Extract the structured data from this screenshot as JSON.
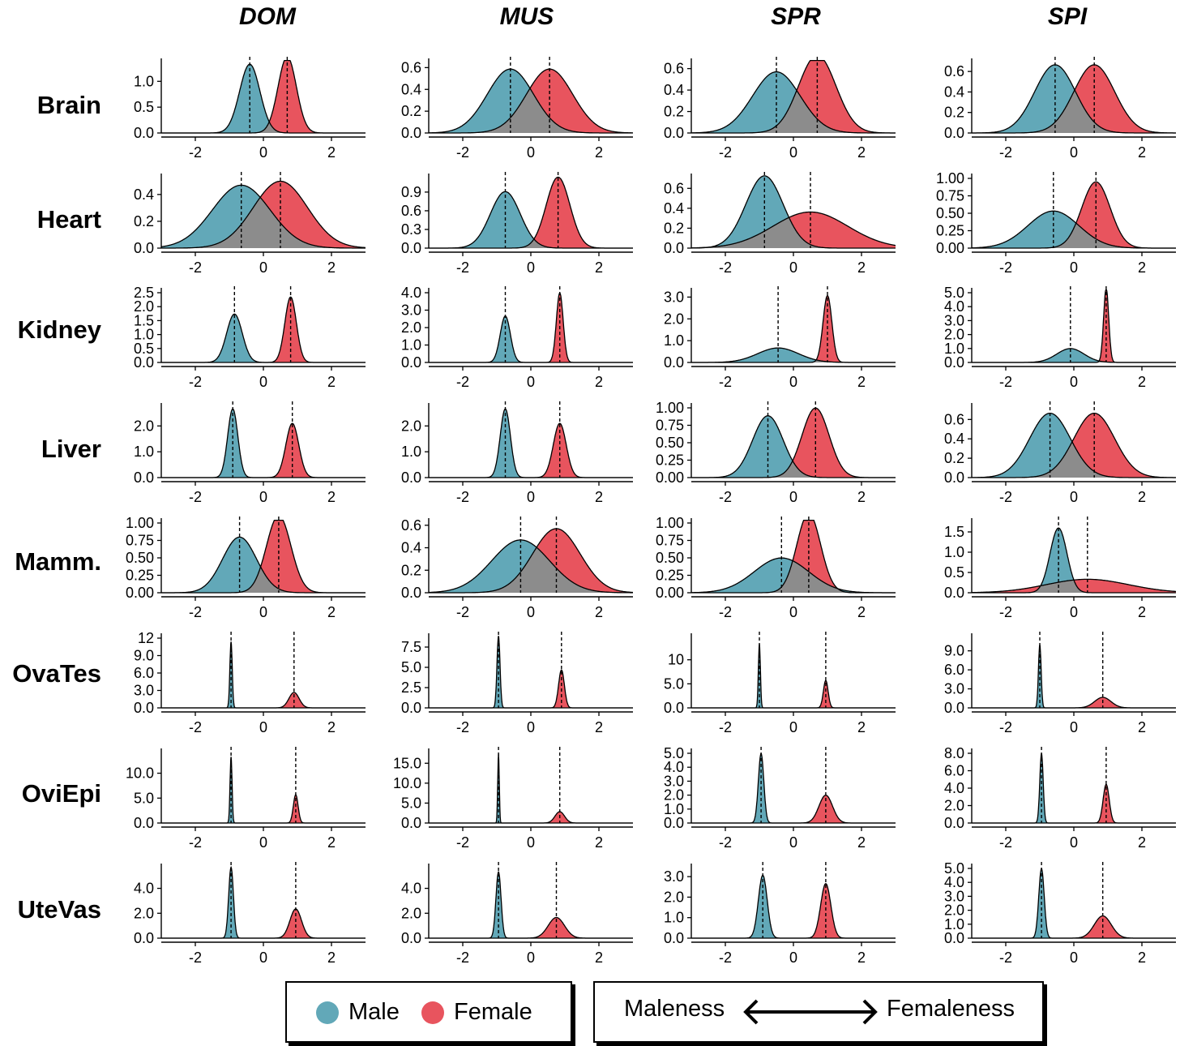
{
  "colors": {
    "male": "#62a8b8",
    "female": "#e8545e",
    "overlap": "#8c8c8c"
  },
  "chart_data": {
    "type": "area",
    "columns": [
      "DOM",
      "MUS",
      "SPR",
      "SPI"
    ],
    "rows": [
      "Brain",
      "Heart",
      "Kidney",
      "Liver",
      "Mamm.",
      "OvaTes",
      "OviEpi",
      "UteVas"
    ],
    "xlim": [
      -3,
      3
    ],
    "x_ticks": [
      -2,
      0,
      2
    ],
    "panels": [
      {
        "row": "Brain",
        "col": "DOM",
        "y_ticks": [
          "0.0",
          "0.5",
          "1.0"
        ],
        "ymax": 1.35,
        "male": {
          "mean": -0.4,
          "sd": 0.3
        },
        "female": {
          "mean": 0.7,
          "sd": 0.27
        }
      },
      {
        "row": "Brain",
        "col": "MUS",
        "y_ticks": [
          "0.0",
          "0.2",
          "0.4",
          "0.6"
        ],
        "ymax": 0.64,
        "male": {
          "mean": -0.6,
          "sd": 0.68
        },
        "female": {
          "mean": 0.55,
          "sd": 0.68
        }
      },
      {
        "row": "Brain",
        "col": "SPR",
        "y_ticks": [
          "0.0",
          "0.2",
          "0.4",
          "0.6"
        ],
        "ymax": 0.65,
        "male": {
          "mean": -0.5,
          "sd": 0.7
        },
        "female": {
          "mean": 0.7,
          "sd": 0.55
        }
      },
      {
        "row": "Brain",
        "col": "SPI",
        "y_ticks": [
          "0.0",
          "0.2",
          "0.4",
          "0.6"
        ],
        "ymax": 0.68,
        "male": {
          "mean": -0.55,
          "sd": 0.6
        },
        "female": {
          "mean": 0.6,
          "sd": 0.6
        }
      },
      {
        "row": "Heart",
        "col": "DOM",
        "y_ticks": [
          "0.0",
          "0.2",
          "0.4"
        ],
        "ymax": 0.52,
        "male": {
          "mean": -0.65,
          "sd": 0.85
        },
        "female": {
          "mean": 0.5,
          "sd": 0.8
        }
      },
      {
        "row": "Heart",
        "col": "MUS",
        "y_ticks": [
          "0.0",
          "0.3",
          "0.6",
          "0.9"
        ],
        "ymax": 1.12,
        "male": {
          "mean": -0.75,
          "sd": 0.44
        },
        "female": {
          "mean": 0.8,
          "sd": 0.35
        }
      },
      {
        "row": "Heart",
        "col": "SPR",
        "y_ticks": [
          "0.0",
          "0.2",
          "0.4",
          "0.6"
        ],
        "ymax": 0.7,
        "male": {
          "mean": -0.85,
          "sd": 0.55
        },
        "female": {
          "mean": 0.5,
          "sd": 1.1
        }
      },
      {
        "row": "Heart",
        "col": "SPI",
        "y_ticks": [
          "0.00",
          "0.25",
          "0.50",
          "0.75",
          "1.00"
        ],
        "ymax": 1.0,
        "male": {
          "mean": -0.6,
          "sd": 0.75
        },
        "female": {
          "mean": 0.65,
          "sd": 0.42
        }
      },
      {
        "row": "Kidney",
        "col": "DOM",
        "y_ticks": [
          "0.0",
          "0.5",
          "1.0",
          "1.5",
          "2.0",
          "2.5"
        ],
        "ymax": 2.5,
        "male": {
          "mean": -0.85,
          "sd": 0.23
        },
        "female": {
          "mean": 0.8,
          "sd": 0.17
        }
      },
      {
        "row": "Kidney",
        "col": "MUS",
        "y_ticks": [
          "0.0",
          "1.0",
          "2.0",
          "3.0",
          "4.0"
        ],
        "ymax": 4.0,
        "male": {
          "mean": -0.75,
          "sd": 0.15
        },
        "female": {
          "mean": 0.85,
          "sd": 0.1
        }
      },
      {
        "row": "Kidney",
        "col": "SPR",
        "y_ticks": [
          "0.0",
          "1.0",
          "2.0",
          "3.0"
        ],
        "ymax": 3.2,
        "male": {
          "mean": -0.45,
          "sd": 0.6
        },
        "female": {
          "mean": 1.0,
          "sd": 0.13
        }
      },
      {
        "row": "Kidney",
        "col": "SPI",
        "y_ticks": [
          "0.0",
          "1.0",
          "2.0",
          "3.0",
          "4.0",
          "5.0"
        ],
        "ymax": 5.0,
        "male": {
          "mean": -0.1,
          "sd": 0.4
        },
        "female": {
          "mean": 0.95,
          "sd": 0.075
        }
      },
      {
        "row": "Liver",
        "col": "DOM",
        "y_ticks": [
          "0.0",
          "1.0",
          "2.0"
        ],
        "ymax": 2.7,
        "male": {
          "mean": -0.9,
          "sd": 0.15
        },
        "female": {
          "mean": 0.85,
          "sd": 0.19
        }
      },
      {
        "row": "Liver",
        "col": "MUS",
        "y_ticks": [
          "0.0",
          "1.0",
          "2.0"
        ],
        "ymax": 2.7,
        "male": {
          "mean": -0.75,
          "sd": 0.15
        },
        "female": {
          "mean": 0.85,
          "sd": 0.19
        }
      },
      {
        "row": "Liver",
        "col": "SPR",
        "y_ticks": [
          "0.00",
          "0.25",
          "0.50",
          "0.75",
          "1.00"
        ],
        "ymax": 1.0,
        "male": {
          "mean": -0.75,
          "sd": 0.45
        },
        "female": {
          "mean": 0.65,
          "sd": 0.4
        }
      },
      {
        "row": "Liver",
        "col": "SPI",
        "y_ticks": [
          "0.0",
          "0.2",
          "0.4",
          "0.6"
        ],
        "ymax": 0.72,
        "male": {
          "mean": -0.7,
          "sd": 0.6
        },
        "female": {
          "mean": 0.6,
          "sd": 0.6
        }
      },
      {
        "row": "Mamm.",
        "col": "DOM",
        "y_ticks": [
          "0.00",
          "0.25",
          "0.50",
          "0.75",
          "1.00"
        ],
        "ymax": 1.0,
        "male": {
          "mean": -0.7,
          "sd": 0.5
        },
        "female": {
          "mean": 0.45,
          "sd": 0.36
        }
      },
      {
        "row": "Mamm.",
        "col": "MUS",
        "y_ticks": [
          "0.0",
          "0.2",
          "0.4",
          "0.6"
        ],
        "ymax": 0.62,
        "male": {
          "mean": -0.3,
          "sd": 0.85
        },
        "female": {
          "mean": 0.75,
          "sd": 0.7
        }
      },
      {
        "row": "Mamm.",
        "col": "SPR",
        "y_ticks": [
          "0.00",
          "0.25",
          "0.50",
          "0.75",
          "1.00"
        ],
        "ymax": 1.0,
        "male": {
          "mean": -0.35,
          "sd": 0.8
        },
        "female": {
          "mean": 0.45,
          "sd": 0.35
        }
      },
      {
        "row": "Mamm.",
        "col": "SPI",
        "y_ticks": [
          "0.0",
          "0.5",
          "1.0",
          "1.5"
        ],
        "ymax": 1.72,
        "male": {
          "mean": -0.45,
          "sd": 0.25
        },
        "female": {
          "mean": 0.4,
          "sd": 1.2
        }
      },
      {
        "row": "OvaTes",
        "col": "DOM",
        "y_ticks": [
          "0.0",
          "3.0",
          "6.0",
          "9.0",
          "12"
        ],
        "ymax": 12.0,
        "male": {
          "mean": -0.95,
          "sd": 0.035
        },
        "female": {
          "mean": 0.9,
          "sd": 0.15
        }
      },
      {
        "row": "OvaTes",
        "col": "MUS",
        "y_ticks": [
          "0.0",
          "2.5",
          "5.0",
          "7.5"
        ],
        "ymax": 8.6,
        "male": {
          "mean": -0.95,
          "sd": 0.045
        },
        "female": {
          "mean": 0.9,
          "sd": 0.085
        }
      },
      {
        "row": "OvaTes",
        "col": "SPR",
        "y_ticks": [
          "0.0",
          "5.0",
          "10"
        ],
        "ymax": 14.5,
        "male": {
          "mean": -1.0,
          "sd": 0.03
        },
        "female": {
          "mean": 0.95,
          "sd": 0.07
        }
      },
      {
        "row": "OvaTes",
        "col": "SPI",
        "y_ticks": [
          "0.0",
          "3.0",
          "6.0",
          "9.0"
        ],
        "ymax": 11.0,
        "male": {
          "mean": -1.0,
          "sd": 0.04
        },
        "female": {
          "mean": 0.85,
          "sd": 0.24
        }
      },
      {
        "row": "OviEpi",
        "col": "DOM",
        "y_ticks": [
          "0.0",
          "5.0",
          "10.0"
        ],
        "ymax": 14.0,
        "male": {
          "mean": -0.95,
          "sd": 0.03
        },
        "female": {
          "mean": 0.95,
          "sd": 0.07
        }
      },
      {
        "row": "OviEpi",
        "col": "MUS",
        "y_ticks": [
          "0.0",
          "5.0",
          "10.0",
          "15.0"
        ],
        "ymax": 17.5,
        "male": {
          "mean": -0.95,
          "sd": 0.023
        },
        "female": {
          "mean": 0.85,
          "sd": 0.14
        }
      },
      {
        "row": "OviEpi",
        "col": "SPR",
        "y_ticks": [
          "0.0",
          "1.0",
          "2.0",
          "3.0",
          "4.0",
          "5.0"
        ],
        "ymax": 5.0,
        "male": {
          "mean": -0.95,
          "sd": 0.08
        },
        "female": {
          "mean": 0.95,
          "sd": 0.2
        }
      },
      {
        "row": "OviEpi",
        "col": "SPI",
        "y_ticks": [
          "0.0",
          "2.0",
          "4.0",
          "6.0",
          "8.0"
        ],
        "ymax": 8.0,
        "male": {
          "mean": -0.95,
          "sd": 0.05
        },
        "female": {
          "mean": 0.95,
          "sd": 0.09
        }
      },
      {
        "row": "UteVas",
        "col": "DOM",
        "y_ticks": [
          "0.0",
          "2.0",
          "4.0"
        ],
        "ymax": 5.6,
        "male": {
          "mean": -0.95,
          "sd": 0.07
        },
        "female": {
          "mean": 0.95,
          "sd": 0.17
        }
      },
      {
        "row": "UteVas",
        "col": "MUS",
        "y_ticks": [
          "0.0",
          "2.0",
          "4.0"
        ],
        "ymax": 5.6,
        "male": {
          "mean": -0.95,
          "sd": 0.075
        },
        "female": {
          "mean": 0.75,
          "sd": 0.24
        }
      },
      {
        "row": "UteVas",
        "col": "SPR",
        "y_ticks": [
          "0.0",
          "1.0",
          "2.0",
          "3.0"
        ],
        "ymax": 3.4,
        "male": {
          "mean": -0.9,
          "sd": 0.13
        },
        "female": {
          "mean": 0.95,
          "sd": 0.15
        }
      },
      {
        "row": "UteVas",
        "col": "SPI",
        "y_ticks": [
          "0.0",
          "1.0",
          "2.0",
          "3.0",
          "4.0",
          "5.0"
        ],
        "ymax": 5.0,
        "male": {
          "mean": -0.95,
          "sd": 0.08
        },
        "female": {
          "mean": 0.85,
          "sd": 0.25
        }
      }
    ]
  },
  "legend": {
    "male_label": "Male",
    "female_label": "Female",
    "left_label": "Maleness",
    "right_label": "Femaleness"
  }
}
